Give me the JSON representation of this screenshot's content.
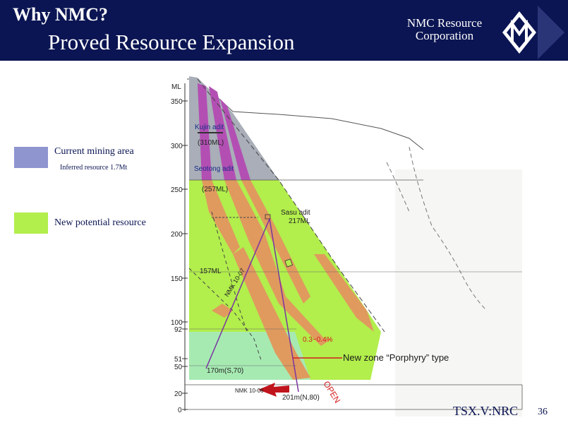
{
  "header": {
    "title": "Why NMC?",
    "subtitle": "Proved Resource Expansion",
    "company": [
      "NMC Resource",
      "Corporation"
    ]
  },
  "legend": [
    {
      "label": "Current mining area",
      "note": "Inferred resource 1.7Mt",
      "color": "#8e95cf"
    },
    {
      "label": "New potential resource",
      "note": "",
      "color": "#b2ee4c"
    }
  ],
  "diagram": {
    "axis_label": "ML",
    "ticks": [
      "350",
      "300",
      "250",
      "200",
      "150",
      "100",
      "92",
      "51",
      "50",
      "20",
      "0"
    ],
    "labels": {
      "kujin": "Kujin adit",
      "kujin_level": "(310ML)",
      "seotong": "Seotong adit",
      "seotong_level": "(257ML)",
      "sasu": "Sasu adit",
      "sasu_level": "217ML",
      "level_157": "157ML",
      "hole_1037": "NMK 10-07",
      "hole_1006": "NMK 10-06",
      "depth_170": "170m(S,70)",
      "depth_201": "201m(N,80)",
      "grade": "0.3~0.4%",
      "new_zone": "New zone “Porphyry” type",
      "open": "OPEN"
    },
    "colors": {
      "gray": "#a9aeb8",
      "magenta": "#b34fb3",
      "green": "#b2ee4c",
      "lightgreen": "#a6eab2",
      "orange": "#e09a5e",
      "red": "#d21f1f"
    }
  },
  "footer": {
    "ticker": "TSX.V:NRC",
    "page": "36"
  }
}
